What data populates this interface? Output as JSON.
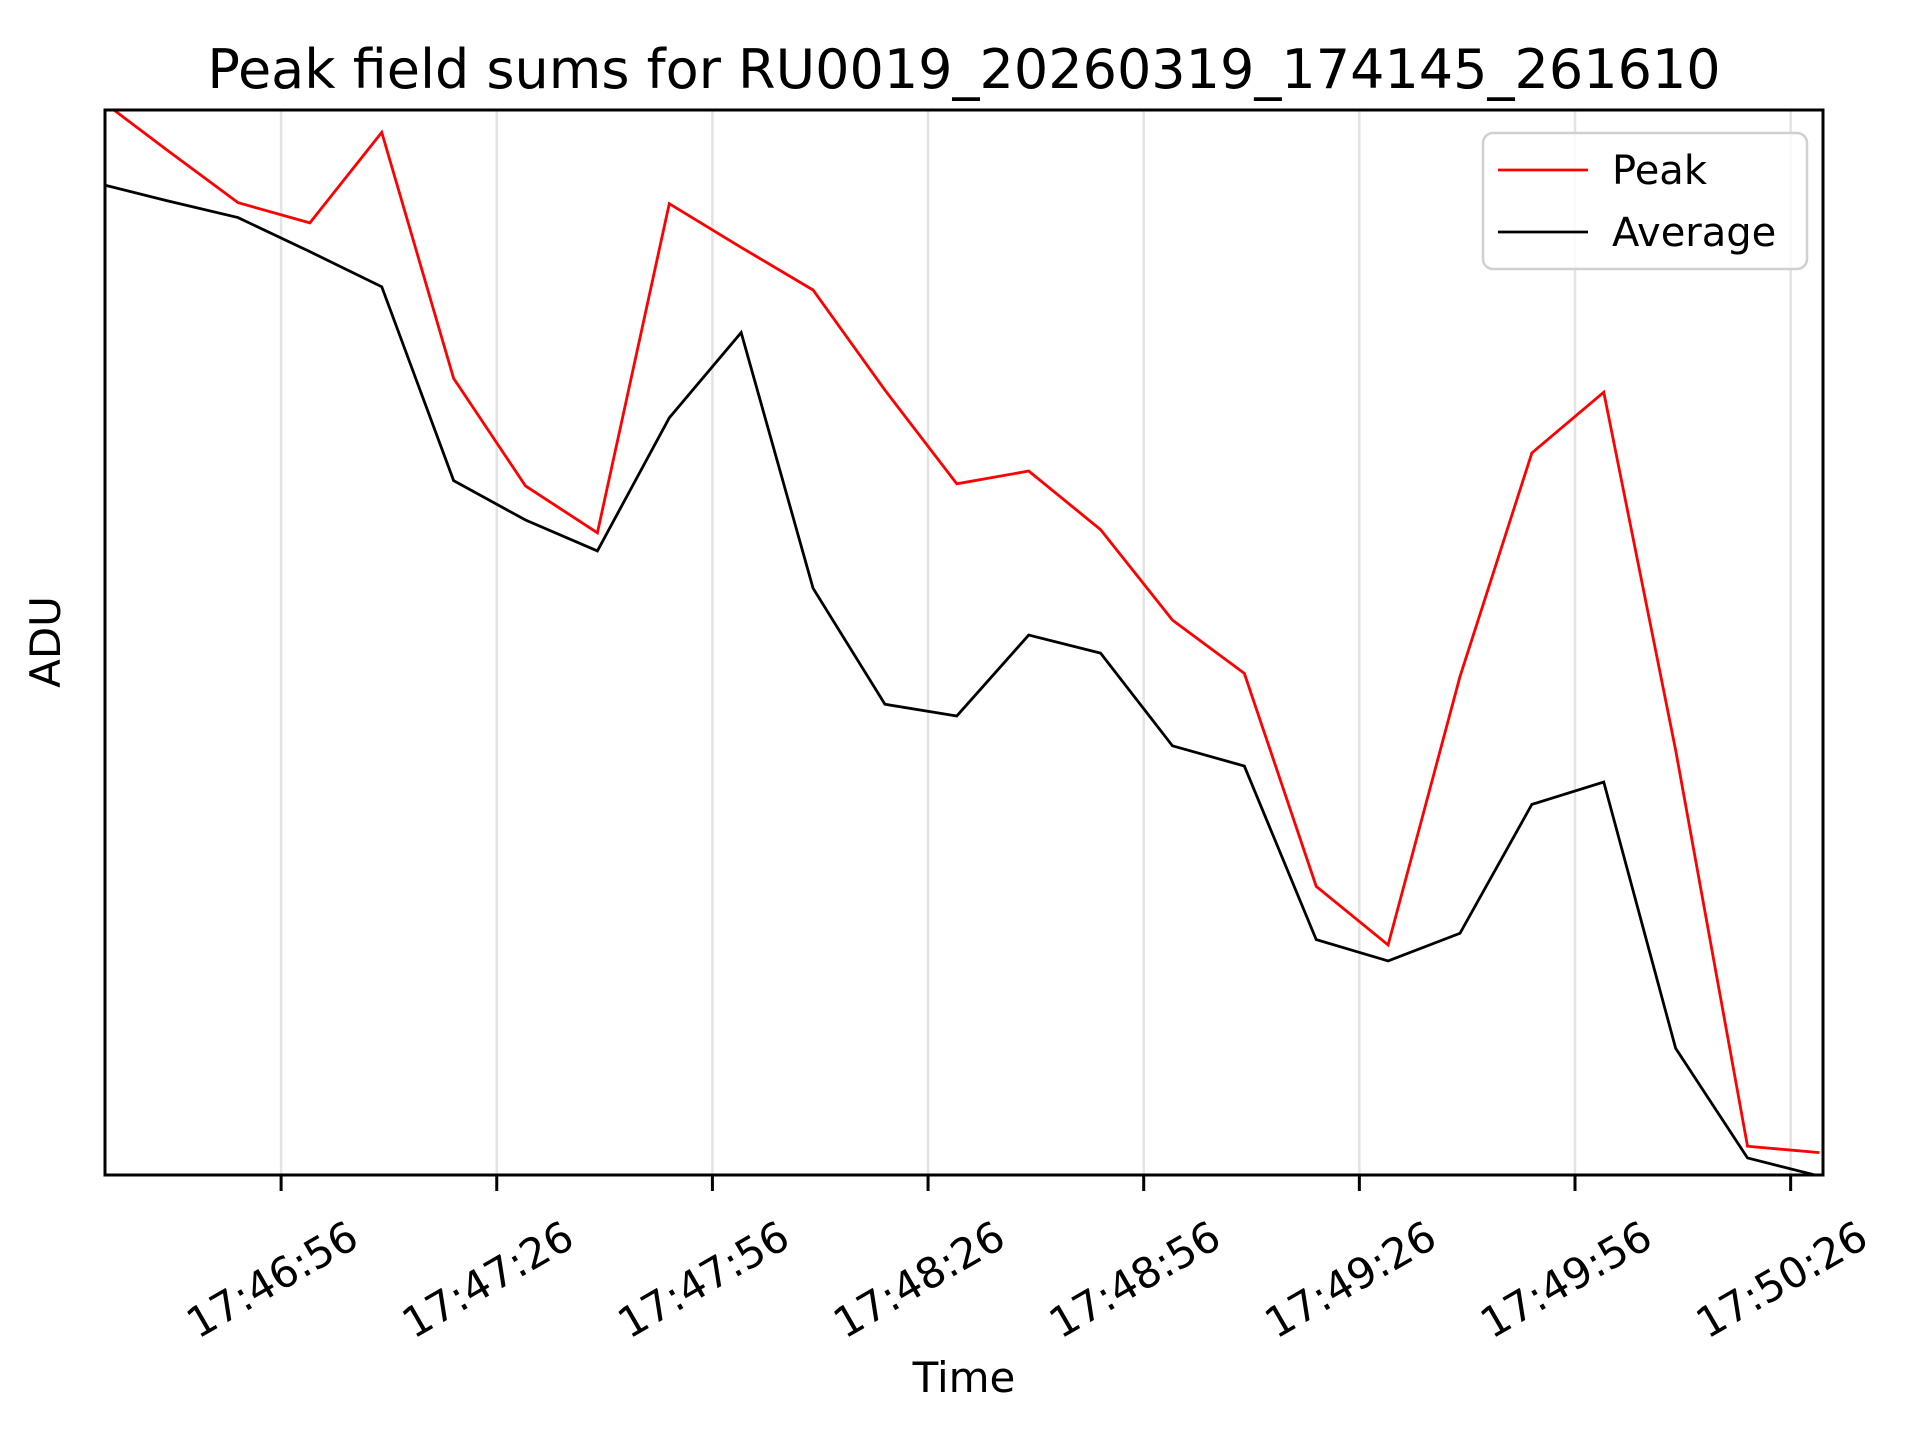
{
  "title": "Peak field sums for RU0019_20260319_174145_261610",
  "axes": {
    "xlabel": "Time",
    "ylabel": "ADU"
  },
  "legend": {
    "position": "upper right",
    "items": [
      {
        "label": "Peak",
        "color": "#ff0000"
      },
      {
        "label": "Average",
        "color": "#000000"
      }
    ]
  },
  "chart_data": {
    "type": "line",
    "title": "Peak field sums for RU0019_20260319_174145_261610",
    "xlabel": "Time",
    "ylabel": "ADU",
    "grid": "vertical gridlines at each x tick, light gray",
    "legend_position": "upper right",
    "y_value_scale": "normalized 0-100 arbitrary ADU units (figure shows no y tick labels)",
    "ylim": [
      0,
      100
    ],
    "xlim_s": [
      1.5,
      240.5
    ],
    "x_times": [
      "17:46:30",
      "17:46:40",
      "17:46:50",
      "17:47:00",
      "17:47:10",
      "17:47:20",
      "17:47:30",
      "17:47:40",
      "17:47:50",
      "17:48:00",
      "17:48:10",
      "17:48:20",
      "17:48:30",
      "17:48:40",
      "17:48:50",
      "17:49:00",
      "17:49:10",
      "17:49:20",
      "17:49:30",
      "17:49:40",
      "17:49:50",
      "17:50:00",
      "17:50:10",
      "17:50:20",
      "17:50:30"
    ],
    "x_offsets_s": [
      0,
      10,
      20,
      30,
      40,
      50,
      60,
      70,
      80,
      90,
      100,
      110,
      120,
      130,
      140,
      150,
      160,
      170,
      180,
      190,
      200,
      210,
      220,
      230,
      240
    ],
    "series": [
      {
        "name": "Peak",
        "color": "#ff0000",
        "values": [
          101.4,
          96.3,
          91.3,
          89.4,
          97.9,
          74.8,
          64.7,
          60.3,
          91.2,
          87.1,
          83.1,
          73.7,
          64.9,
          66.1,
          60.6,
          52.1,
          47.1,
          27.1,
          21.6,
          46.8,
          67.8,
          73.5,
          39.9,
          2.7,
          2.1
        ]
      },
      {
        "name": "Average",
        "color": "#000000",
        "values": [
          93.2,
          91.5,
          89.9,
          86.7,
          83.4,
          65.2,
          61.5,
          58.6,
          71.1,
          79.1,
          55.1,
          44.2,
          43.1,
          50.7,
          49.0,
          40.3,
          38.4,
          22.1,
          20.1,
          22.7,
          34.8,
          36.9,
          11.9,
          1.6,
          -0.1
        ]
      }
    ],
    "xticks": [
      {
        "offset_s": 26,
        "label": "17:46:56"
      },
      {
        "offset_s": 56,
        "label": "17:47:26"
      },
      {
        "offset_s": 86,
        "label": "17:47:56"
      },
      {
        "offset_s": 116,
        "label": "17:48:26"
      },
      {
        "offset_s": 146,
        "label": "17:48:56"
      },
      {
        "offset_s": 176,
        "label": "17:49:26"
      },
      {
        "offset_s": 206,
        "label": "17:49:56"
      },
      {
        "offset_s": 236,
        "label": "17:50:26"
      }
    ],
    "yticks": []
  },
  "style": {
    "background": "#ffffff",
    "grid_color": "#e3e3e3",
    "spine_color": "#000000",
    "legend_border_color": "#d0d0d0",
    "text_color": "#000000"
  }
}
